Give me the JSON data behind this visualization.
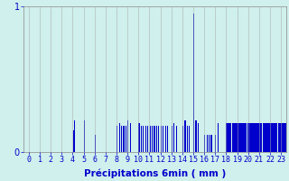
{
  "xlabel": "Précipitations 6min ( mm )",
  "background_color": "#cff0ec",
  "bar_color": "#0000cc",
  "grid_color": "#aaaaaa",
  "ylim": [
    0,
    1.0
  ],
  "xlim": [
    -0.5,
    23.5
  ],
  "yticks": [
    0,
    1
  ],
  "xticks": [
    0,
    1,
    2,
    3,
    4,
    5,
    6,
    7,
    8,
    9,
    10,
    11,
    12,
    13,
    14,
    15,
    16,
    17,
    18,
    19,
    20,
    21,
    22,
    23
  ],
  "hour_data": [
    {
      "hour": 0,
      "bins": [
        0,
        0,
        0,
        0,
        0,
        0,
        0,
        0,
        0,
        0
      ]
    },
    {
      "hour": 1,
      "bins": [
        0,
        0,
        0,
        0,
        0,
        0,
        0,
        0,
        0,
        0
      ]
    },
    {
      "hour": 2,
      "bins": [
        0,
        0,
        0,
        0,
        0,
        0,
        0,
        0,
        0,
        0
      ]
    },
    {
      "hour": 3,
      "bins": [
        0,
        0,
        0,
        0,
        0,
        0,
        0,
        0,
        0,
        0
      ]
    },
    {
      "hour": 4,
      "bins": [
        0.15,
        0.22,
        0,
        0,
        0,
        0,
        0,
        0,
        0,
        0
      ]
    },
    {
      "hour": 5,
      "bins": [
        0.22,
        0,
        0,
        0,
        0,
        0,
        0,
        0,
        0,
        0
      ]
    },
    {
      "hour": 6,
      "bins": [
        0.12,
        0,
        0,
        0,
        0,
        0,
        0,
        0,
        0,
        0
      ]
    },
    {
      "hour": 7,
      "bins": [
        0,
        0,
        0,
        0,
        0,
        0,
        0,
        0,
        0,
        0
      ]
    },
    {
      "hour": 8,
      "bins": [
        0.18,
        0,
        0.2,
        0,
        0.18,
        0,
        0.18,
        0,
        0.18,
        0
      ]
    },
    {
      "hour": 9,
      "bins": [
        0.22,
        0,
        0.2,
        0,
        0,
        0,
        0,
        0,
        0,
        0
      ]
    },
    {
      "hour": 10,
      "bins": [
        0.2,
        0,
        0.18,
        0,
        0.18,
        0,
        0.18,
        0,
        0.18,
        0
      ]
    },
    {
      "hour": 11,
      "bins": [
        0.18,
        0,
        0.18,
        0,
        0.18,
        0,
        0.18,
        0,
        0.18,
        0
      ]
    },
    {
      "hour": 12,
      "bins": [
        0.18,
        0,
        0.18,
        0,
        0.18,
        0,
        0.18,
        0,
        0,
        0
      ]
    },
    {
      "hour": 13,
      "bins": [
        0.18,
        0,
        0.2,
        0,
        0.18,
        0,
        0,
        0,
        0,
        0
      ]
    },
    {
      "hour": 14,
      "bins": [
        0.18,
        0,
        0.22,
        0,
        0.18,
        0,
        0.18,
        0,
        0,
        0
      ]
    },
    {
      "hour": 15,
      "bins": [
        0.95,
        0,
        0.22,
        0,
        0.2,
        0,
        0,
        0,
        0,
        0
      ]
    },
    {
      "hour": 16,
      "bins": [
        0.12,
        0,
        0.12,
        0,
        0.12,
        0,
        0.12,
        0,
        0,
        0
      ]
    },
    {
      "hour": 17,
      "bins": [
        0.12,
        0,
        0.2,
        0,
        0,
        0,
        0,
        0,
        0,
        0
      ]
    },
    {
      "hour": 18,
      "bins": [
        0.2,
        0.2,
        0.2,
        0.2,
        0.2,
        0.2,
        0.2,
        0.2,
        0.2,
        0.2
      ]
    },
    {
      "hour": 19,
      "bins": [
        0.2,
        0.2,
        0.2,
        0.2,
        0.2,
        0.2,
        0.2,
        0.2,
        0.2,
        0.2
      ]
    },
    {
      "hour": 20,
      "bins": [
        0.2,
        0.2,
        0.2,
        0.2,
        0.2,
        0.2,
        0.2,
        0.2,
        0.2,
        0.2
      ]
    },
    {
      "hour": 21,
      "bins": [
        0.2,
        0.2,
        0.2,
        0.2,
        0.2,
        0.2,
        0.2,
        0.2,
        0.2,
        0.2
      ]
    },
    {
      "hour": 22,
      "bins": [
        0.2,
        0.2,
        0.2,
        0.2,
        0.2,
        0.2,
        0.2,
        0.2,
        0.2,
        0.2
      ]
    },
    {
      "hour": 23,
      "bins": [
        0.2,
        0.2,
        0.2,
        0.2,
        0.2,
        0.2,
        0.2,
        0.2,
        0.2,
        0.2
      ]
    }
  ]
}
